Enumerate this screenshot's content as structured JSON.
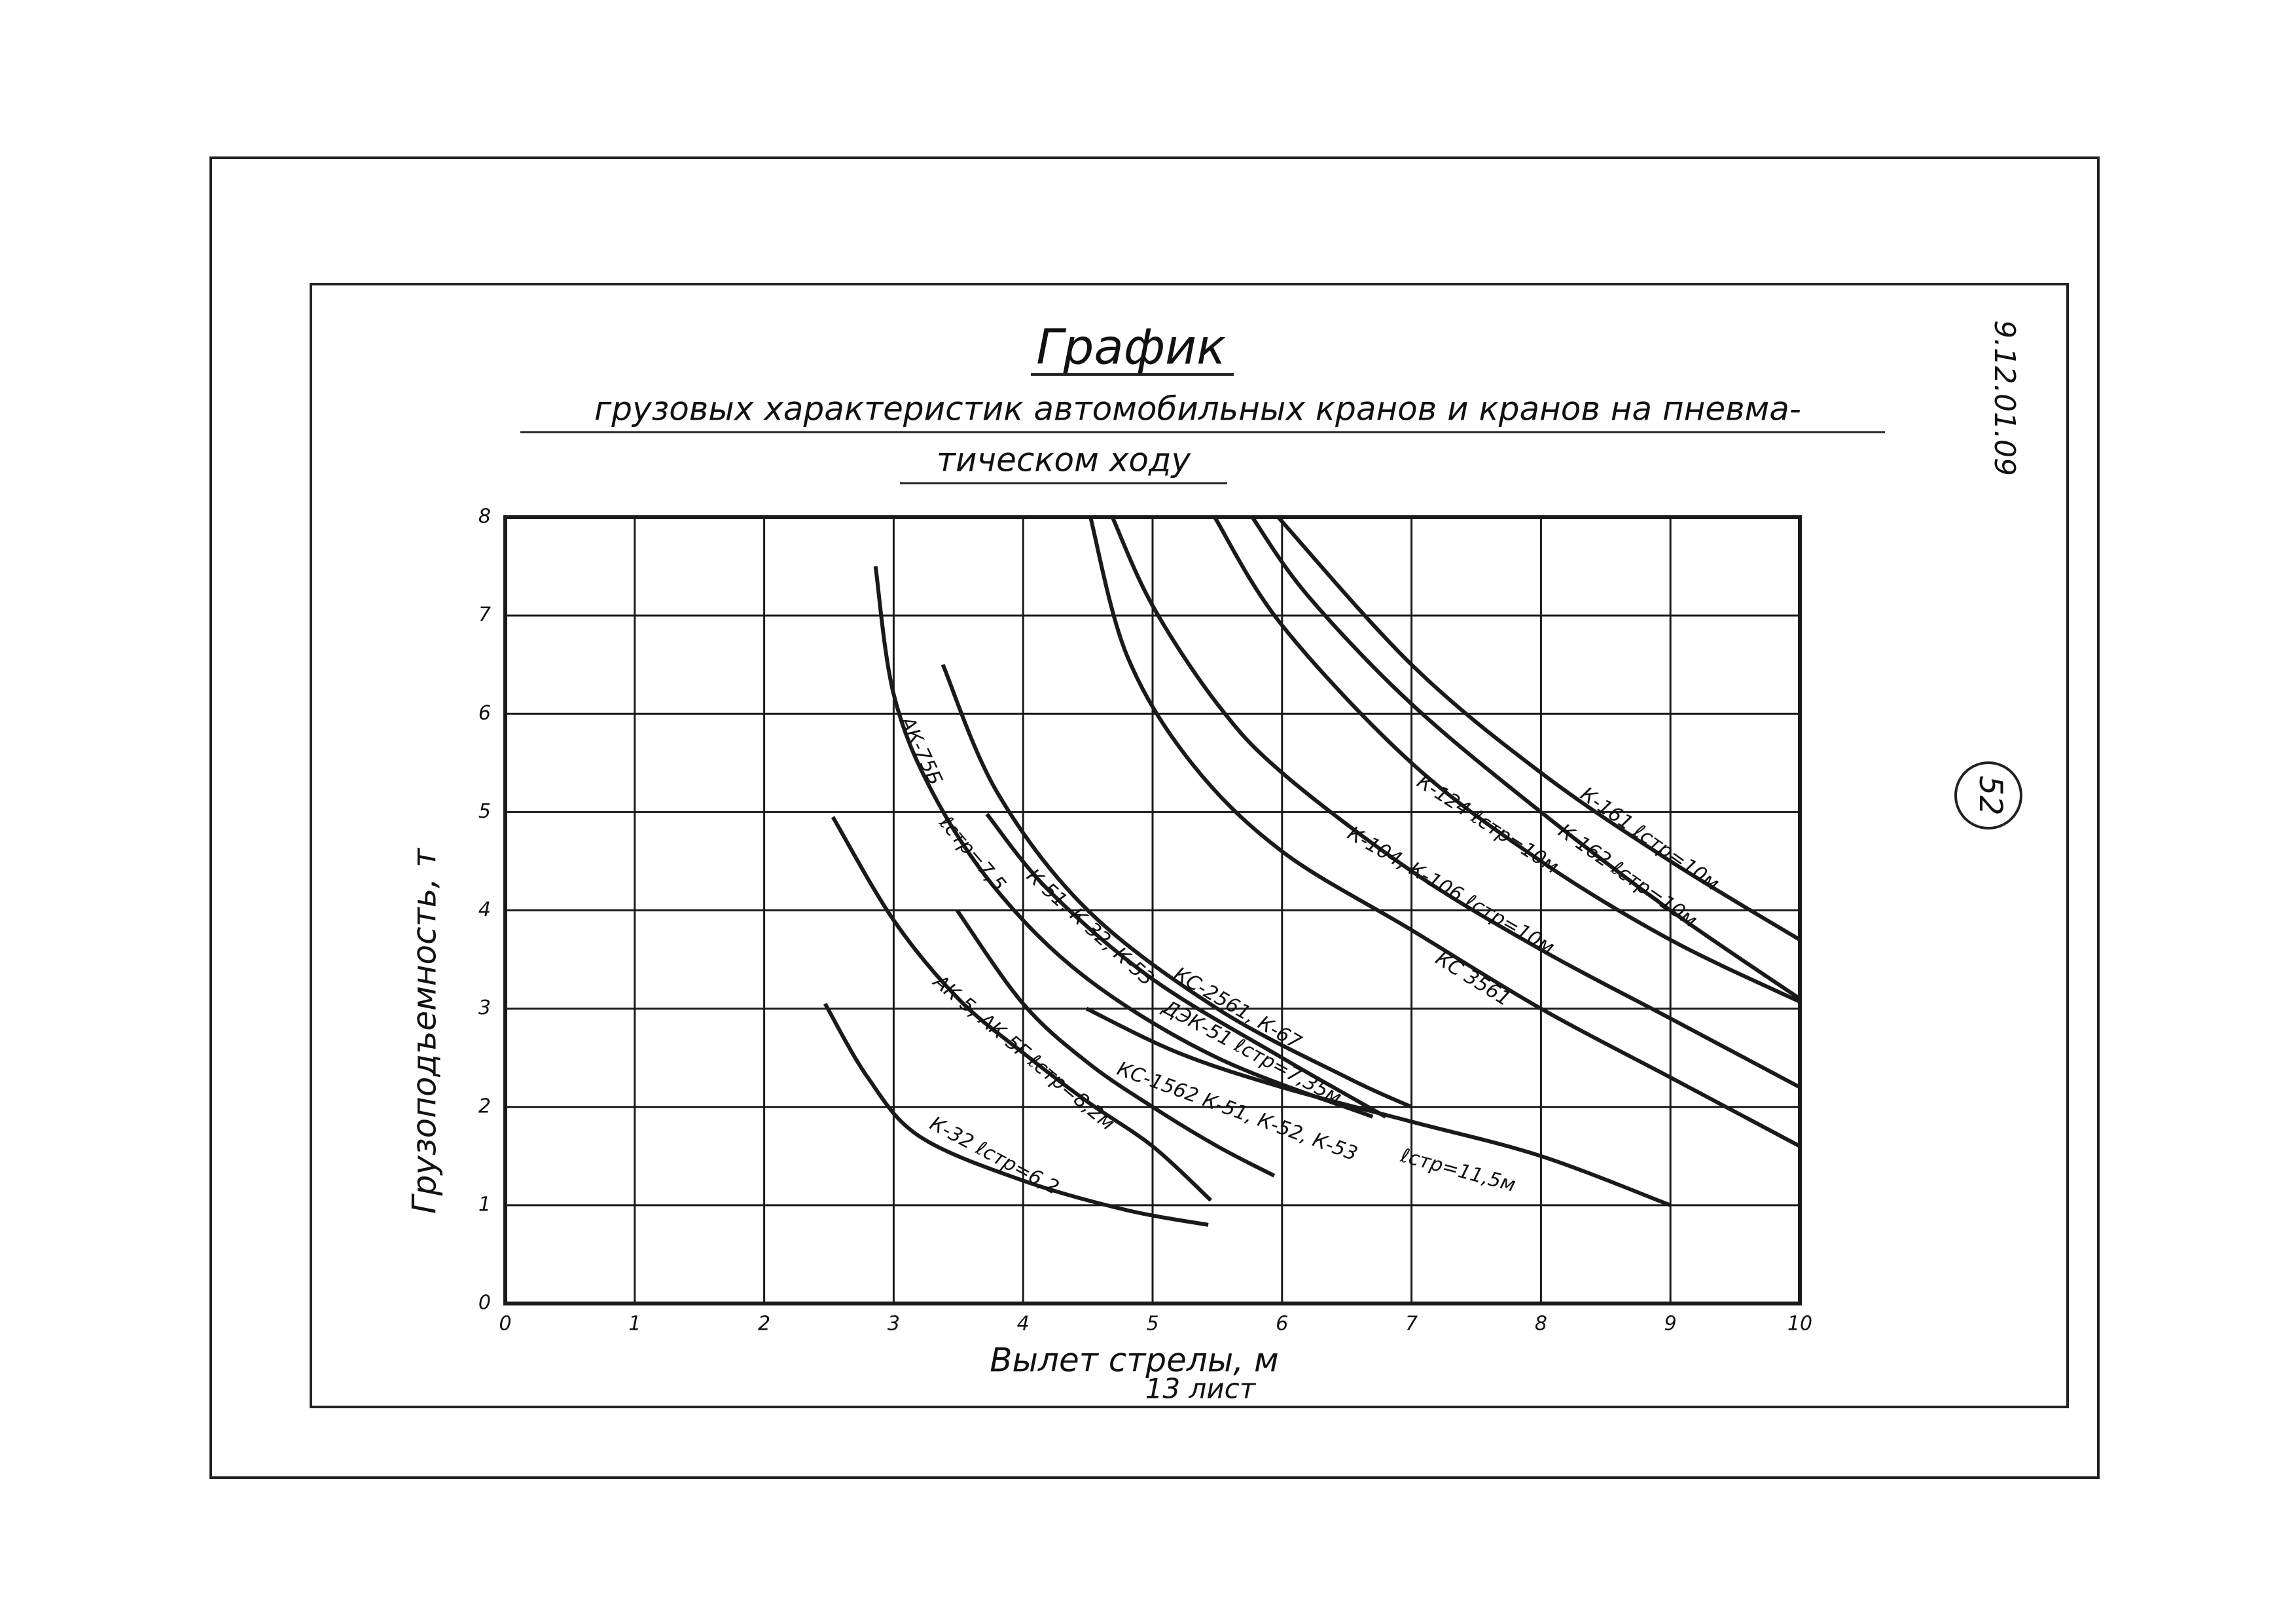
{
  "chart_data": {
    "type": "line",
    "title": "График",
    "subtitle": [
      "грузовых характеристик автомобильных кранов и кранов на пневма-",
      "тическом ходу"
    ],
    "x_label": "Вылет стрелы, м",
    "y_label": "Грузоподъемность, т",
    "sheet": "13 лист",
    "doc_code": "9.12.01.09",
    "page_number": "52",
    "xlim": [
      0,
      10
    ],
    "ylim": [
      0,
      8
    ],
    "xticks": [
      0,
      1,
      2,
      3,
      4,
      5,
      6,
      7,
      8,
      9,
      10
    ],
    "yticks": [
      0,
      1,
      2,
      3,
      4,
      5,
      6,
      7,
      8
    ],
    "grid": true,
    "color": "#1a1a1a",
    "series": [
      {
        "x": [
          2.47,
          2.8,
          3.2,
          4,
          4.8,
          5.43
        ],
        "values": [
          3.05,
          2.3,
          1.7,
          1.25,
          0.95,
          0.8
        ]
      },
      {
        "x": [
          2.53,
          3,
          3.5,
          4,
          4.5,
          5,
          5.45
        ],
        "values": [
          4.95,
          3.9,
          3.1,
          2.55,
          2.05,
          1.6,
          1.05
        ]
      },
      {
        "x": [
          3.49,
          4,
          4.5,
          5,
          5.5,
          5.94
        ],
        "values": [
          4.0,
          3.05,
          2.45,
          2.0,
          1.6,
          1.3
        ]
      },
      {
        "x": [
          2.86,
          3,
          3.3,
          3.8,
          4.5,
          5.5,
          6.7
        ],
        "values": [
          7.5,
          6.2,
          5.2,
          4.2,
          3.3,
          2.5,
          1.9
        ]
      },
      {
        "x": [
          3.38,
          3.8,
          4.5,
          5.5,
          6.5,
          7.0
        ],
        "values": [
          6.5,
          5.2,
          4.0,
          3.0,
          2.3,
          2.0
        ]
      },
      {
        "x": [
          3.72,
          4.2,
          5,
          6,
          6.8
        ],
        "values": [
          4.98,
          4.2,
          3.3,
          2.5,
          1.9
        ]
      },
      {
        "x": [
          4.49,
          5.2,
          6,
          7,
          8,
          9
        ],
        "values": [
          3.0,
          2.55,
          2.2,
          1.85,
          1.5,
          1.0
        ]
      },
      {
        "x": [
          4.52,
          4.8,
          5.3,
          6,
          7,
          8,
          9,
          10
        ],
        "values": [
          8,
          6.6,
          5.5,
          4.6,
          3.8,
          3.0,
          2.3,
          1.6
        ]
      },
      {
        "x": [
          4.69,
          5,
          5.5,
          6,
          7,
          8,
          9,
          10
        ],
        "values": [
          8,
          7.1,
          6.1,
          5.4,
          4.4,
          3.6,
          2.9,
          2.2
        ]
      },
      {
        "x": [
          5.48,
          6,
          7,
          8,
          9,
          10
        ],
        "values": [
          8,
          6.9,
          5.5,
          4.5,
          3.7,
          3.07
        ]
      },
      {
        "x": [
          5.77,
          6.2,
          7,
          8,
          9,
          10
        ],
        "values": [
          8,
          7.2,
          6.1,
          5.0,
          4.0,
          3.1
        ]
      },
      {
        "x": [
          5.97,
          7,
          8,
          9,
          10
        ],
        "values": [
          8,
          6.5,
          5.4,
          4.5,
          3.7
        ]
      }
    ],
    "annotations": [
      "К-161 ℓстр=10м",
      "К-162 ℓстр=10м",
      "К-124 ℓстр=10м",
      "К-104, К-106 ℓстр=10м",
      "КС 3561",
      "АК-75Б",
      "ℓстр=7,5",
      "К-51, К-32, К-53",
      "КС-2561, К-67",
      "ДЭК-51 ℓстр=7,35м",
      "КС-1562 К-51, К-52, К-53",
      "ℓстр=11,5м",
      "АК-5, АК-5Г ℓстр=8,2м",
      "К-32 ℓстр=6,2"
    ]
  }
}
